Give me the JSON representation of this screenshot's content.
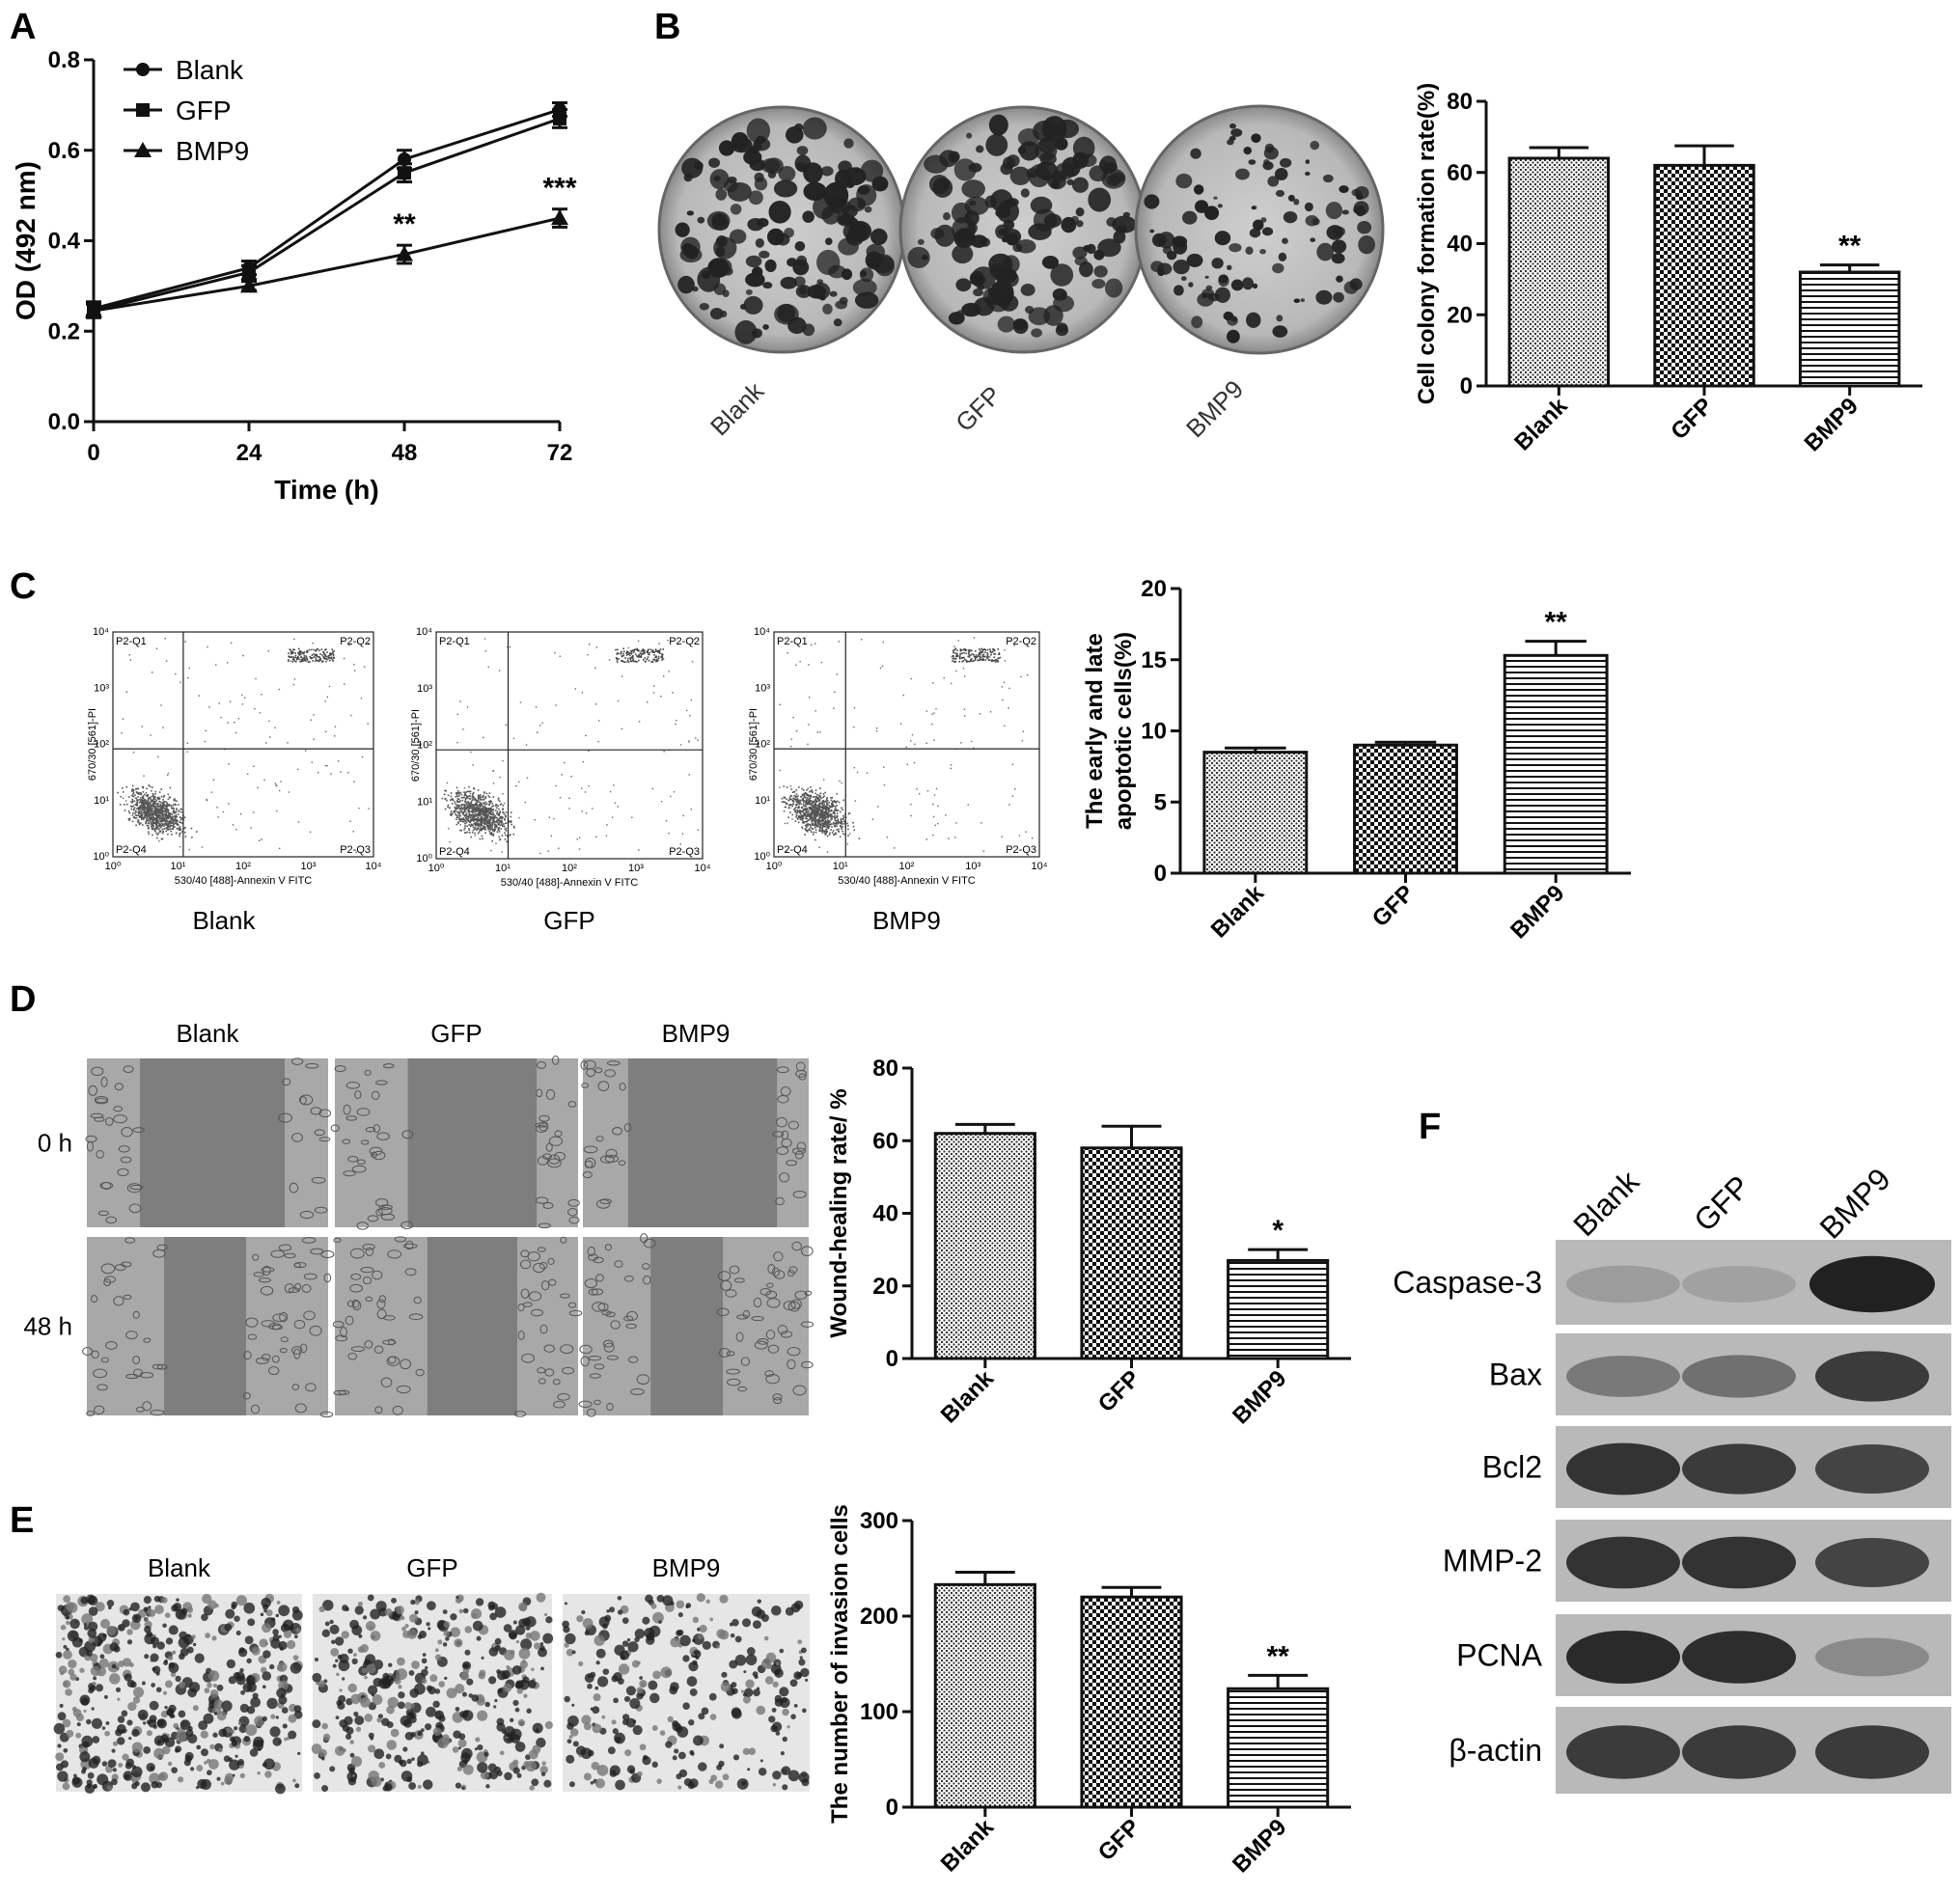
{
  "panels": {
    "A": "A",
    "B": "B",
    "C": "C",
    "D": "D",
    "E": "E",
    "F": "F"
  },
  "chart_data": [
    {
      "id": "A",
      "type": "line",
      "xlabel": "Time (h)",
      "ylabel": "OD (492 nm)",
      "x": [
        0,
        24,
        48,
        72
      ],
      "xticks": [
        "0",
        "24",
        "48",
        "72"
      ],
      "yticks": [
        "0.0",
        "0.2",
        "0.4",
        "0.6",
        "0.8"
      ],
      "xlim": [
        0,
        72
      ],
      "ylim": [
        0,
        0.8
      ],
      "legend_position": "top-left",
      "series": [
        {
          "name": "Blank",
          "marker": "circle",
          "values": [
            0.25,
            0.34,
            0.58,
            0.69
          ],
          "errors": [
            0.015,
            0.015,
            0.02,
            0.015
          ]
        },
        {
          "name": "GFP",
          "marker": "square",
          "values": [
            0.245,
            0.33,
            0.55,
            0.67
          ],
          "errors": [
            0.015,
            0.015,
            0.02,
            0.02
          ]
        },
        {
          "name": "BMP9",
          "marker": "triangle",
          "values": [
            0.245,
            0.3,
            0.37,
            0.45
          ],
          "errors": [
            0.015,
            0.01,
            0.02,
            0.02
          ]
        }
      ],
      "annotations": [
        {
          "x": 48,
          "text": "**"
        },
        {
          "x": 72,
          "text": "***"
        }
      ]
    },
    {
      "id": "B",
      "type": "bar",
      "ylabel": "Cell colony formation rate(%)",
      "categories": [
        "Blank",
        "GFP",
        "BMP9"
      ],
      "values": [
        64,
        62,
        32
      ],
      "errors": [
        3,
        5.5,
        2
      ],
      "yticks": [
        "0",
        "20",
        "40",
        "60",
        "80"
      ],
      "ylim": [
        0,
        80
      ],
      "annotations": [
        {
          "category": "BMP9",
          "text": "**"
        }
      ]
    },
    {
      "id": "C",
      "type": "bar",
      "ylabel": "The early and late apoptotic cells(%)",
      "categories": [
        "Blank",
        "GFP",
        "BMP9"
      ],
      "values": [
        8.5,
        9.0,
        15.3
      ],
      "errors": [
        0.3,
        0.2,
        1.0
      ],
      "yticks": [
        "0",
        "5",
        "10",
        "15",
        "20"
      ],
      "ylim": [
        0,
        20
      ],
      "annotations": [
        {
          "category": "BMP9",
          "text": "**"
        }
      ]
    },
    {
      "id": "D",
      "type": "bar",
      "ylabel": "Wound-healing rate/ %",
      "categories": [
        "Blank",
        "GFP",
        "BMP9"
      ],
      "values": [
        62,
        58,
        27
      ],
      "errors": [
        2.5,
        6,
        3
      ],
      "yticks": [
        "0",
        "20",
        "40",
        "60",
        "80"
      ],
      "ylim": [
        0,
        80
      ],
      "annotations": [
        {
          "category": "BMP9",
          "text": "*"
        }
      ]
    },
    {
      "id": "E",
      "type": "bar",
      "ylabel": "The number of invasion cells",
      "categories": [
        "Blank",
        "GFP",
        "BMP9"
      ],
      "values": [
        233,
        220,
        124
      ],
      "errors": [
        13,
        10,
        14
      ],
      "yticks": [
        "0",
        "100",
        "200",
        "300"
      ],
      "ylim": [
        0,
        300
      ],
      "annotations": [
        {
          "category": "BMP9",
          "text": "**"
        }
      ]
    }
  ],
  "colony": {
    "labels": [
      "Blank",
      "GFP",
      "BMP9"
    ]
  },
  "flow": {
    "labels": [
      "Blank",
      "GFP",
      "BMP9"
    ],
    "xaxis": "530/40 [488]-Annexin V FITC",
    "yaxis": "670/30 [561]-PI",
    "q1": "P2-Q1",
    "q2": "P2-Q2",
    "q3": "P2-Q3",
    "q4": "P2-Q4",
    "decades": [
      "10⁰",
      "10¹",
      "10²",
      "10³",
      "10⁴"
    ]
  },
  "wound": {
    "columns": [
      "Blank",
      "GFP",
      "BMP9"
    ],
    "rows": [
      "0 h",
      "48 h"
    ]
  },
  "invasion": {
    "columns": [
      "Blank",
      "GFP",
      "BMP9"
    ]
  },
  "western": {
    "lanes": [
      "Blank",
      "GFP",
      "BMP9"
    ],
    "rows": [
      {
        "label": "Caspase-3",
        "intensity": [
          0.25,
          0.22,
          0.95
        ]
      },
      {
        "label": "Bax",
        "intensity": [
          0.45,
          0.5,
          0.8
        ]
      },
      {
        "label": "Bcl2",
        "intensity": [
          0.85,
          0.8,
          0.75
        ]
      },
      {
        "label": "MMP-2",
        "intensity": [
          0.85,
          0.85,
          0.75
        ]
      },
      {
        "label": "PCNA",
        "intensity": [
          0.9,
          0.88,
          0.35
        ]
      },
      {
        "label": "β-actin",
        "intensity": [
          0.8,
          0.8,
          0.8
        ]
      }
    ]
  }
}
